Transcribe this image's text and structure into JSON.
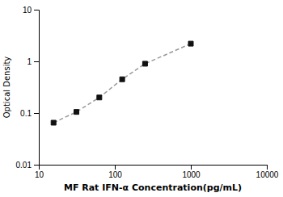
{
  "chart_data": {
    "type": "line",
    "xlabel": "MF Rat IFN-α Concentration(pg/mL)",
    "ylabel": "Optical Density",
    "x": [
      15.625,
      31.25,
      62.5,
      125,
      250,
      1000
    ],
    "values": [
      0.065,
      0.105,
      0.2,
      0.45,
      0.9,
      2.2
    ],
    "xlim": [
      10,
      10000
    ],
    "ylim": [
      0.01,
      10
    ],
    "xticks": [
      10,
      100,
      1000,
      10000
    ],
    "yticks": [
      0.01,
      0.1,
      1,
      10
    ],
    "log": true,
    "color": "#999999",
    "marker": "square",
    "line_style": "dashed"
  }
}
